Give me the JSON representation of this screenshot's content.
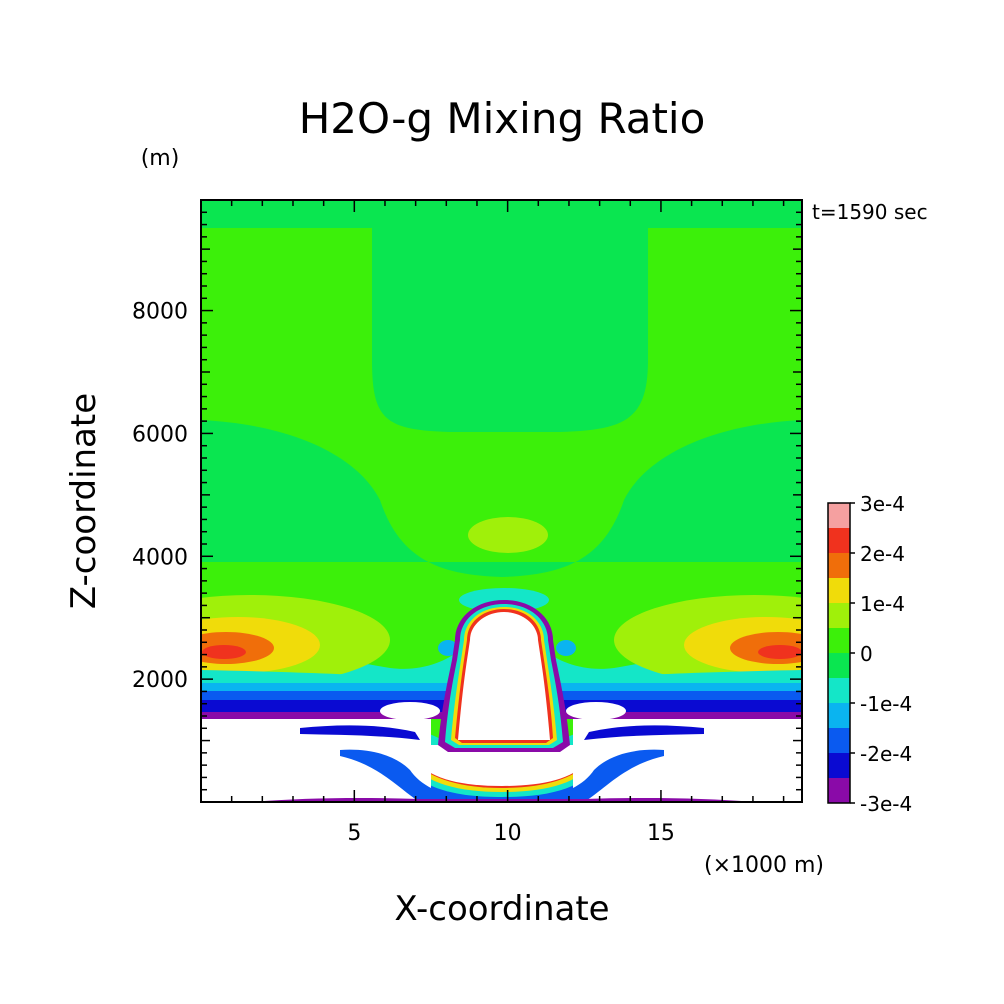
{
  "chart_data": {
    "type": "heatmap",
    "title": "H2O-g Mixing Ratio",
    "xlabel": "X-coordinate",
    "ylabel": "Z-coordinate",
    "x_unit": "(×1000 m)",
    "y_unit": "(m)",
    "time_label": "t=1590 sec",
    "xlim": [
      0,
      19.6
    ],
    "ylim": [
      0,
      9800
    ],
    "x_ticks": [
      5,
      10,
      15
    ],
    "y_ticks": [
      2000,
      4000,
      6000,
      8000
    ],
    "colorbar": {
      "levels": [
        -0.0003,
        -0.00025,
        -0.0002,
        -0.00015,
        -0.0001,
        -5e-05,
        0,
        5e-05,
        0.0001,
        0.00015,
        0.0002,
        0.00025,
        0.0003
      ],
      "colors": [
        "#8a0aa8",
        "#0a0ad2",
        "#0a5af0",
        "#0ab4f0",
        "#14e6c8",
        "#0ae650",
        "#3cf00a",
        "#a0f00a",
        "#f0dc0a",
        "#f06e0a",
        "#f0321e",
        "#f5a0a0"
      ],
      "tick_labels": [
        "-3e-4",
        "-2e-4",
        "-1e-4",
        "0",
        "1e-4",
        "2e-4",
        "3e-4"
      ]
    }
  }
}
